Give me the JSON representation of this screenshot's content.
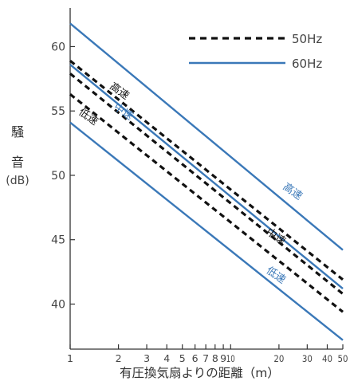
{
  "chart_data": {
    "type": "line",
    "title": "",
    "xlabel": "有圧換気扇よりの距離（m）",
    "ylabel_chars": [
      "騒",
      "音"
    ],
    "ylabel_unit": "(dB)",
    "x_scale": "log",
    "xlim": [
      1,
      50
    ],
    "ylim": [
      36.5,
      63
    ],
    "x_ticks": [
      1,
      2,
      3,
      4,
      5,
      6,
      7,
      8,
      9,
      10,
      20,
      30,
      40,
      50
    ],
    "x_tick_labels": [
      "1",
      "2",
      "3",
      "4",
      "5",
      "6",
      "7",
      "8",
      "9",
      "10",
      "20",
      "30",
      "40",
      "50"
    ],
    "y_ticks": [
      40,
      45,
      50,
      55,
      60
    ],
    "y_tick_labels": [
      "40",
      "45",
      "50",
      "55",
      "60"
    ],
    "grid": false,
    "legend_position": "top-right",
    "series": [
      {
        "name": "50Hz",
        "label": "高速",
        "style": "dashed",
        "color": "#111111",
        "x": [
          1,
          50
        ],
        "y": [
          58.9,
          41.9
        ]
      },
      {
        "name": "50Hz",
        "label": "中速",
        "style": "dashed",
        "color": "#111111",
        "x": [
          1,
          50
        ],
        "y": [
          57.9,
          40.8
        ]
      },
      {
        "name": "50Hz",
        "label": "低速",
        "style": "dashed",
        "color": "#111111",
        "x": [
          1,
          50
        ],
        "y": [
          56.3,
          39.4
        ]
      },
      {
        "name": "60Hz",
        "label": "高速",
        "style": "solid",
        "color": "#3a78b8",
        "x": [
          1,
          50
        ],
        "y": [
          61.8,
          44.2
        ]
      },
      {
        "name": "60Hz",
        "label": "中速",
        "style": "solid",
        "color": "#3a78b8",
        "x": [
          1,
          50
        ],
        "y": [
          58.6,
          41.2
        ]
      },
      {
        "name": "60Hz",
        "label": "低速",
        "style": "solid",
        "color": "#3a78b8",
        "x": [
          1,
          50
        ],
        "y": [
          54.1,
          37.2
        ]
      }
    ],
    "annotations": [
      {
        "text": "高速",
        "color": "#111111",
        "at": [
          1.75,
          56.8
        ]
      },
      {
        "text": "中速",
        "color": "#3a78b8",
        "at": [
          1.85,
          55.2
        ]
      },
      {
        "text": "低速",
        "color": "#111111",
        "at": [
          1.12,
          54.8
        ]
      },
      {
        "text": "高速",
        "color": "#3a78b8",
        "at": [
          21,
          49.0
        ]
      },
      {
        "text": "中速",
        "color": "#111111",
        "at": [
          16.5,
          45.5
        ]
      },
      {
        "text": "低速",
        "color": "#3a78b8",
        "at": [
          16.5,
          42.5
        ]
      }
    ],
    "legend": [
      {
        "label": "50Hz",
        "style": "dashed",
        "color": "#111111"
      },
      {
        "label": "60Hz",
        "style": "solid",
        "color": "#3a78b8"
      }
    ]
  }
}
